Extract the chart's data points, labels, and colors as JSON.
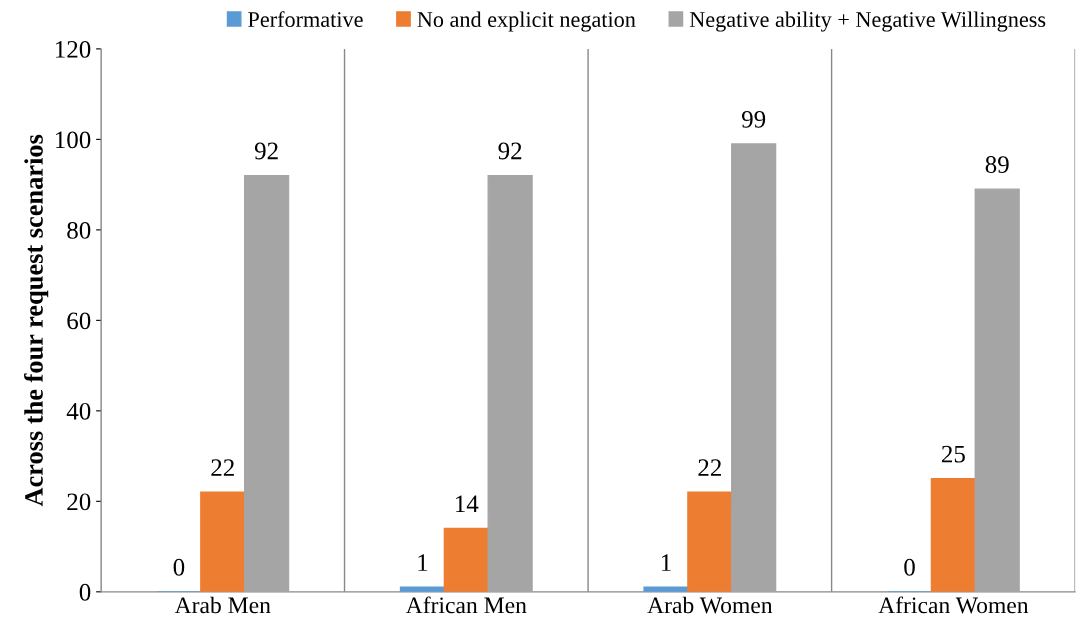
{
  "chart_data": {
    "type": "bar",
    "ylabel": "Across the four request scenarios",
    "categories": [
      "Arab Men",
      "African Men",
      "Arab Women",
      "African Women"
    ],
    "series": [
      {
        "name": "Performative",
        "color": "#5b9bd5",
        "values": [
          0,
          1,
          1,
          0
        ]
      },
      {
        "name": "No and explicit negation",
        "color": "#ed7d31",
        "values": [
          22,
          14,
          22,
          25
        ]
      },
      {
        "name": "Negative ability + Negative Willingness",
        "color": "#a5a5a5",
        "values": [
          92,
          92,
          99,
          89
        ]
      }
    ],
    "ylim": [
      0,
      120
    ],
    "yticks": [
      0,
      20,
      40,
      60,
      80,
      100,
      120
    ],
    "grid": "x",
    "legend": "top",
    "data_labels": true
  }
}
